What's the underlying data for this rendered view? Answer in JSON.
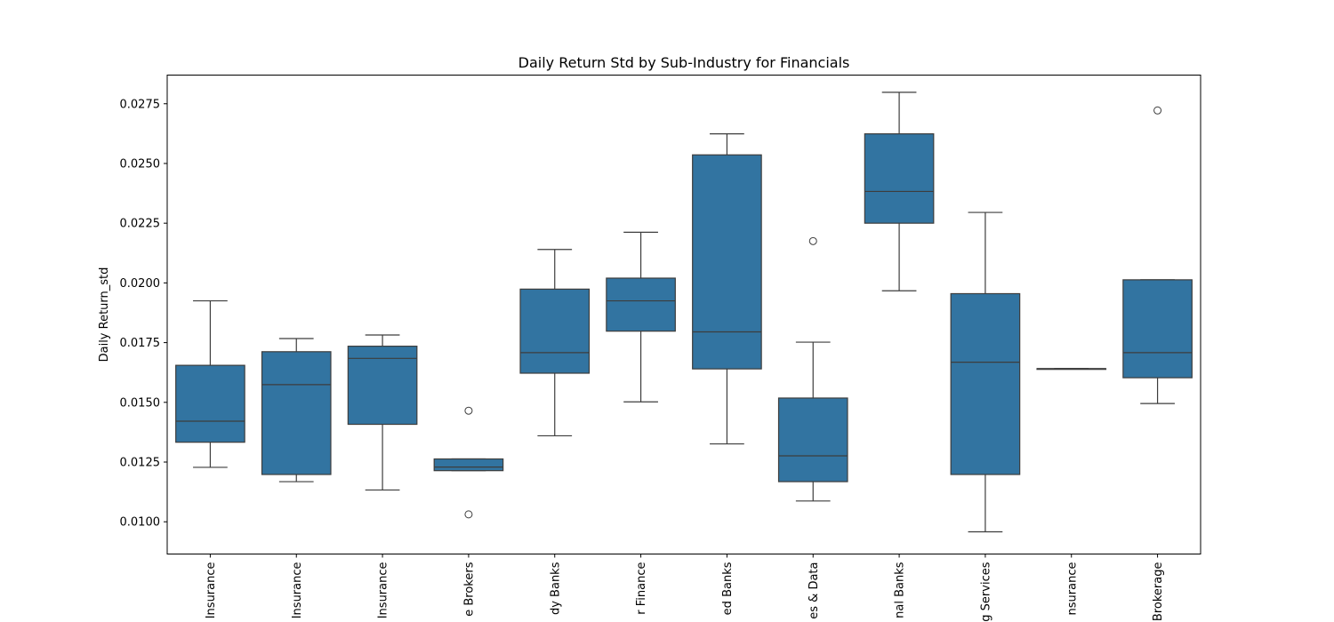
{
  "chart_data": {
    "type": "box",
    "title": "Daily Return Std by Sub-Industry for Financials",
    "xlabel": "",
    "ylabel": "Daily Return_std",
    "ylim": [
      0.00865,
      0.0287
    ],
    "y_ticks": [
      "0.0100",
      "0.0125",
      "0.0150",
      "0.0175",
      "0.0200",
      "0.0225",
      "0.0250",
      "0.0275"
    ],
    "grid": false,
    "box_color": "#3274a1",
    "categories": [
      "Insurance",
      "Insurance",
      "Insurance",
      "e Brokers",
      "dy Banks",
      "r Finance",
      "ed Banks",
      "es & Data",
      "nal Banks",
      "g Services",
      "nsurance",
      "Brokerage"
    ],
    "boxes": [
      {
        "whislo": 0.01228,
        "q1": 0.01333,
        "med": 0.01421,
        "q3": 0.01655,
        "whishi": 0.01925,
        "fliers": []
      },
      {
        "whislo": 0.01168,
        "q1": 0.01198,
        "med": 0.01574,
        "q3": 0.01712,
        "whishi": 0.01767,
        "fliers": []
      },
      {
        "whislo": 0.01133,
        "q1": 0.01408,
        "med": 0.01684,
        "q3": 0.01735,
        "whishi": 0.01782,
        "fliers": []
      },
      {
        "whislo": 0.01214,
        "q1": 0.01214,
        "med": 0.01229,
        "q3": 0.01263,
        "whishi": 0.01263,
        "fliers": [
          0.01465,
          0.01031
        ]
      },
      {
        "whislo": 0.0136,
        "q1": 0.01622,
        "med": 0.01708,
        "q3": 0.01974,
        "whishi": 0.0214,
        "fliers": []
      },
      {
        "whislo": 0.01502,
        "q1": 0.01798,
        "med": 0.01925,
        "q3": 0.0202,
        "whishi": 0.02212,
        "fliers": []
      },
      {
        "whislo": 0.01326,
        "q1": 0.0164,
        "med": 0.01795,
        "q3": 0.02536,
        "whishi": 0.02624,
        "fliers": []
      },
      {
        "whislo": 0.01087,
        "q1": 0.01168,
        "med": 0.01276,
        "q3": 0.01518,
        "whishi": 0.01752,
        "fliers": [
          0.02175
        ]
      },
      {
        "whislo": 0.01967,
        "q1": 0.0225,
        "med": 0.02383,
        "q3": 0.02624,
        "whishi": 0.02798,
        "fliers": []
      },
      {
        "whislo": 0.00958,
        "q1": 0.01198,
        "med": 0.01668,
        "q3": 0.01955,
        "whishi": 0.02295,
        "fliers": []
      },
      {
        "whislo": 0.01641,
        "q1": 0.01641,
        "med": 0.01641,
        "q3": 0.01641,
        "whishi": 0.01641,
        "fliers": []
      },
      {
        "whislo": 0.01495,
        "q1": 0.01603,
        "med": 0.01708,
        "q3": 0.02013,
        "whishi": 0.02013,
        "fliers": [
          0.02722
        ]
      }
    ]
  }
}
